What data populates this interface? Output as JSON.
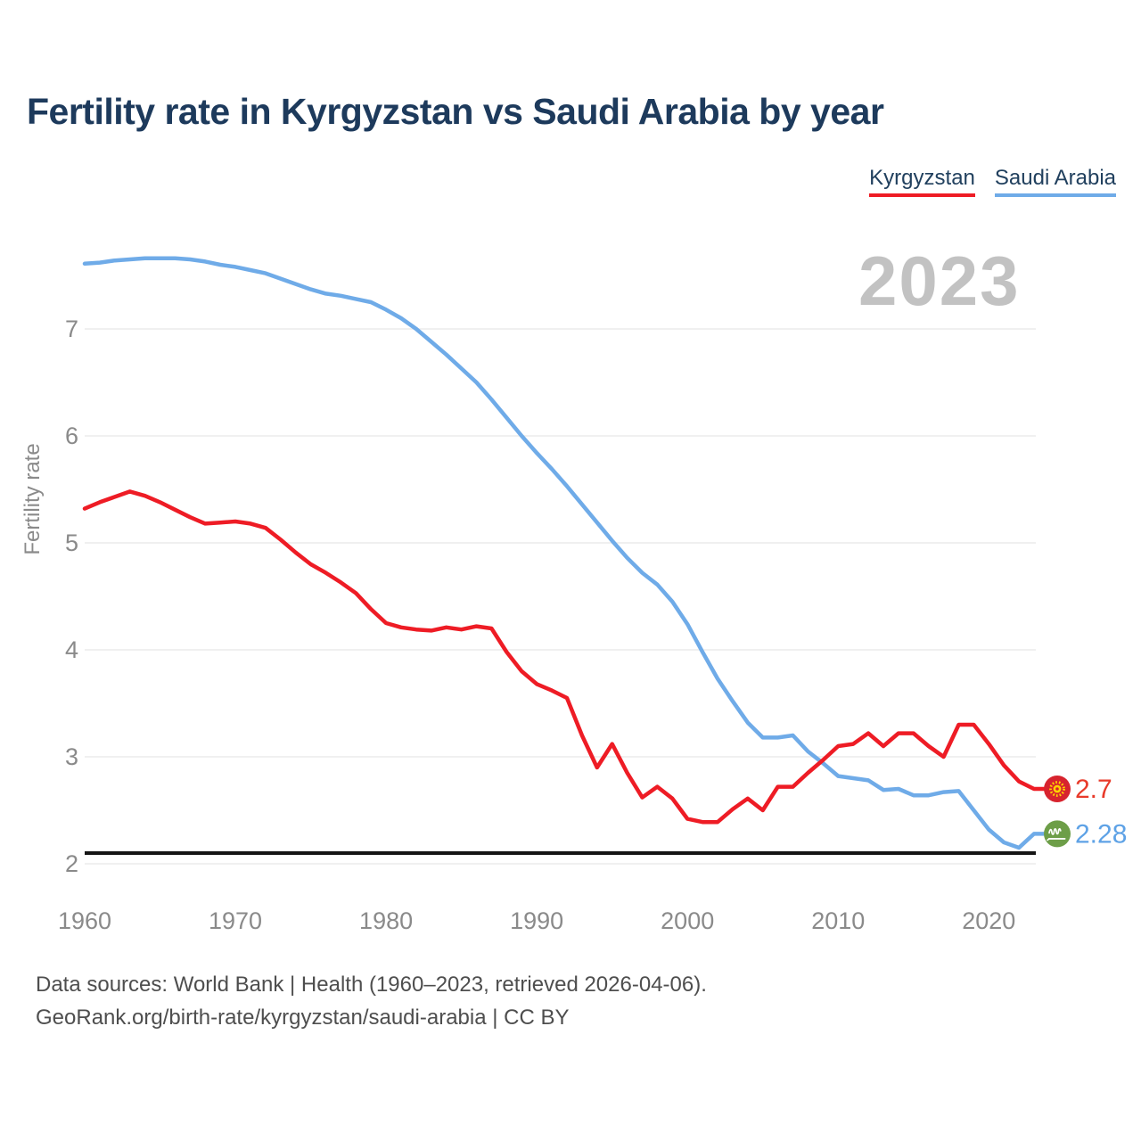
{
  "title": "Fertility rate in Kyrgyzstan vs Saudi Arabia by year",
  "watermark": "2023",
  "legend": {
    "items": [
      {
        "label": "Kyrgyzstan",
        "color": "#ee1c25"
      },
      {
        "label": "Saudi Arabia",
        "color": "#6fabe8"
      }
    ]
  },
  "footer": {
    "line1": "Data sources: World Bank | Health (1960–2023, retrieved 2026-04-06).",
    "line2": "GeoRank.org/birth-rate/kyrgyzstan/saudi-arabia | CC BY"
  },
  "chart_data": {
    "type": "line",
    "title": "Fertility rate in Kyrgyzstan vs Saudi Arabia by year",
    "xlabel": "",
    "ylabel": "Fertility rate",
    "grid": true,
    "legend_position": "top-right",
    "ylim": [
      2,
      7.8
    ],
    "yticks": [
      2,
      3,
      4,
      5,
      6,
      7
    ],
    "xticks": [
      1960,
      1970,
      1980,
      1990,
      2000,
      2010,
      2020
    ],
    "threshold": 2.1,
    "x": [
      1960,
      1961,
      1962,
      1963,
      1964,
      1965,
      1966,
      1967,
      1968,
      1969,
      1970,
      1971,
      1972,
      1973,
      1974,
      1975,
      1976,
      1977,
      1978,
      1979,
      1980,
      1981,
      1982,
      1983,
      1984,
      1985,
      1986,
      1987,
      1988,
      1989,
      1990,
      1991,
      1992,
      1993,
      1994,
      1995,
      1996,
      1997,
      1998,
      1999,
      2000,
      2001,
      2002,
      2003,
      2004,
      2005,
      2006,
      2007,
      2008,
      2009,
      2010,
      2011,
      2012,
      2013,
      2014,
      2015,
      2016,
      2017,
      2018,
      2019,
      2020,
      2021,
      2022,
      2023
    ],
    "series": [
      {
        "name": "Kyrgyzstan",
        "color": "#ee1c25",
        "label_color": "#e83a2a",
        "icon": "kyrgyzstan-flag-icon",
        "end_label": "2.7",
        "values": [
          5.32,
          5.38,
          5.43,
          5.48,
          5.44,
          5.38,
          5.31,
          5.24,
          5.18,
          5.19,
          5.2,
          5.18,
          5.14,
          5.03,
          4.91,
          4.8,
          4.72,
          4.63,
          4.53,
          4.38,
          4.25,
          4.21,
          4.19,
          4.18,
          4.21,
          4.19,
          4.22,
          4.2,
          3.98,
          3.8,
          3.68,
          3.62,
          3.55,
          3.2,
          2.9,
          3.12,
          2.85,
          2.62,
          2.72,
          2.61,
          2.42,
          2.39,
          2.39,
          2.51,
          2.61,
          2.5,
          2.72,
          2.72,
          2.85,
          2.97,
          3.1,
          3.12,
          3.22,
          3.1,
          3.22,
          3.22,
          3.1,
          3.0,
          3.3,
          3.3,
          3.12,
          2.92,
          2.77,
          2.7
        ]
      },
      {
        "name": "Saudi Arabia",
        "color": "#6fabe8",
        "label_color": "#5ea2e6",
        "icon": "saudi-arabia-flag-icon",
        "end_label": "2.28",
        "values": [
          7.61,
          7.62,
          7.64,
          7.65,
          7.66,
          7.66,
          7.66,
          7.65,
          7.63,
          7.6,
          7.58,
          7.55,
          7.52,
          7.47,
          7.42,
          7.37,
          7.33,
          7.31,
          7.28,
          7.25,
          7.18,
          7.1,
          7.0,
          6.88,
          6.76,
          6.63,
          6.5,
          6.34,
          6.17,
          6.0,
          5.84,
          5.69,
          5.53,
          5.36,
          5.19,
          5.02,
          4.86,
          4.72,
          4.61,
          4.45,
          4.24,
          3.98,
          3.73,
          3.52,
          3.32,
          3.18,
          3.18,
          3.2,
          3.05,
          2.94,
          2.82,
          2.8,
          2.78,
          2.69,
          2.7,
          2.64,
          2.64,
          2.67,
          2.68,
          2.5,
          2.32,
          2.2,
          2.15,
          2.28
        ]
      }
    ]
  }
}
